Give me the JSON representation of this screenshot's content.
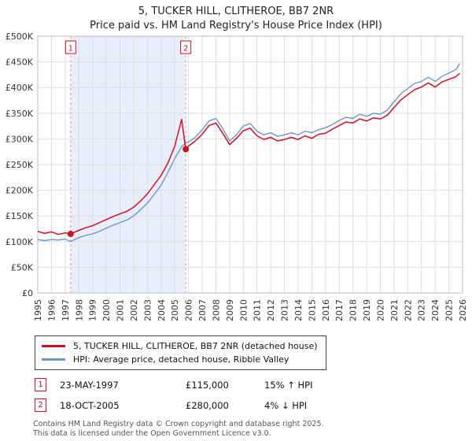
{
  "title": "5, TUCKER HILL, CLITHEROE, BB7 2NR",
  "subtitle": "Price paid vs. HM Land Registry's House Price Index (HPI)",
  "colors": {
    "property_line": "#cc1122",
    "hpi_line": "#7096c8",
    "dashed_marker_line": "#ee9999",
    "shade": "#e9effa",
    "grid": "#d9dde4",
    "frame": "#b8bcc4",
    "axis_text": "#333333"
  },
  "chart_data": {
    "type": "line",
    "title": "5, TUCKER HILL, CLITHEROE, BB7 2NR — Price paid vs. HM Land Registry's House Price Index (HPI)",
    "units": "GBP thousands",
    "xlim": [
      1995,
      2026
    ],
    "ylim": [
      0,
      500
    ],
    "ytick_step": 50,
    "ytick_labels": [
      "£0",
      "£50K",
      "£100K",
      "£150K",
      "£200K",
      "£250K",
      "£300K",
      "£350K",
      "£400K",
      "£450K",
      "£500K"
    ],
    "xticks": [
      1995,
      1996,
      1997,
      1998,
      1999,
      2000,
      2001,
      2002,
      2003,
      2004,
      2005,
      2006,
      2007,
      2008,
      2009,
      2010,
      2011,
      2012,
      2013,
      2014,
      2015,
      2016,
      2017,
      2018,
      2019,
      2020,
      2021,
      2022,
      2023,
      2024,
      2025,
      2026
    ],
    "grid": true,
    "legend_position": "bottom",
    "shaded_span": {
      "from": 1997.4,
      "to": 2005.8
    },
    "x": [
      1995,
      1995.5,
      1996,
      1996.5,
      1997,
      1997.4,
      1998,
      1998.5,
      1999,
      1999.5,
      2000,
      2000.5,
      2001,
      2001.5,
      2002,
      2002.5,
      2003,
      2003.5,
      2004,
      2004.5,
      2005,
      2005.5,
      2005.8,
      2006,
      2006.5,
      2007,
      2007.5,
      2008,
      2008.5,
      2009,
      2009.5,
      2010,
      2010.5,
      2011,
      2011.5,
      2012,
      2012.5,
      2013,
      2013.5,
      2014,
      2014.5,
      2015,
      2015.5,
      2016,
      2016.5,
      2017,
      2017.5,
      2018,
      2018.5,
      2019,
      2019.5,
      2020,
      2020.5,
      2021,
      2021.5,
      2022,
      2022.5,
      2023,
      2023.5,
      2024,
      2024.5,
      2025,
      2025.5,
      2025.8
    ],
    "series": [
      {
        "name": "5, TUCKER HILL, CLITHEROE, BB7 2NR (detached house)",
        "color": "#cc1122",
        "values": [
          120,
          116,
          119,
          114,
          117,
          115,
          122,
          127,
          131,
          137,
          143,
          149,
          154,
          159,
          167,
          179,
          193,
          211,
          229,
          253,
          286,
          338,
          280,
          286,
          296,
          309,
          326,
          331,
          311,
          289,
          301,
          316,
          321,
          306,
          299,
          303,
          296,
          299,
          303,
          299,
          306,
          301,
          309,
          311,
          319,
          326,
          333,
          331,
          339,
          335,
          341,
          339,
          346,
          361,
          376,
          386,
          396,
          401,
          409,
          401,
          411,
          416,
          421,
          428
        ]
      },
      {
        "name": "HPI: Average price, detached house, Ribble Valley",
        "color": "#7096c8",
        "values": [
          104,
          102,
          104,
          103,
          105,
          100,
          108,
          112,
          115,
          120,
          126,
          132,
          137,
          142,
          150,
          162,
          175,
          192,
          210,
          235,
          262,
          285,
          292,
          294,
          303,
          318,
          335,
          340,
          320,
          296,
          308,
          325,
          330,
          315,
          308,
          312,
          305,
          308,
          312,
          308,
          315,
          312,
          318,
          322,
          328,
          336,
          342,
          340,
          348,
          344,
          350,
          348,
          356,
          372,
          388,
          398,
          408,
          412,
          420,
          412,
          422,
          428,
          435,
          447
        ]
      }
    ],
    "markers": [
      {
        "label": "1",
        "x": 1997.4,
        "y": 115
      },
      {
        "label": "2",
        "x": 2005.8,
        "y": 280
      }
    ]
  },
  "transactions": [
    {
      "num": "1",
      "date": "23-MAY-1997",
      "price": "£115,000",
      "hpi": "15% ↑ HPI"
    },
    {
      "num": "2",
      "date": "18-OCT-2005",
      "price": "£280,000",
      "hpi": "4% ↓ HPI"
    }
  ],
  "footer": {
    "line1": "Contains HM Land Registry data © Crown copyright and database right 2025.",
    "line2": "This data is licensed under the Open Government Licence v3.0."
  }
}
